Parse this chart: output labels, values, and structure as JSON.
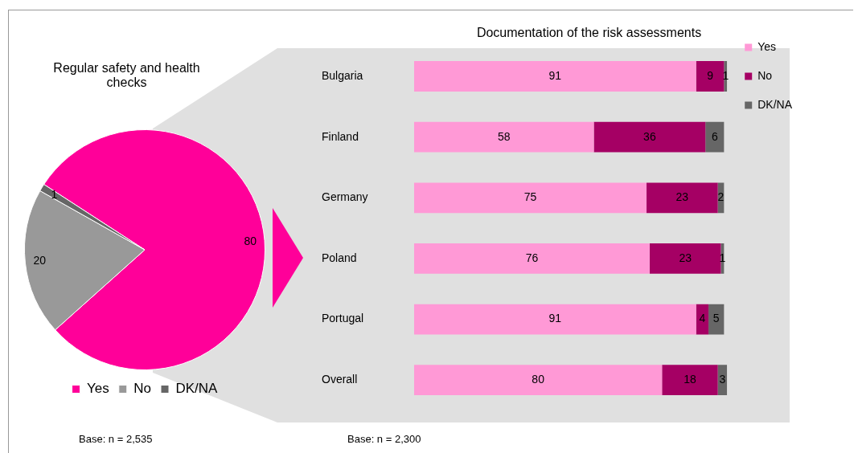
{
  "chart_data": [
    {
      "type": "pie",
      "title": "Regular safety and health checks",
      "categories": [
        "Yes",
        "No",
        "DK/NA"
      ],
      "values": [
        80,
        20,
        1
      ],
      "colors": [
        "#ff0099",
        "#999999",
        "#666666"
      ],
      "data_labels": true,
      "legend": "bottom",
      "annotations": [
        "Base: n = 2,535"
      ]
    },
    {
      "type": "bar",
      "orientation": "horizontal",
      "stacked": true,
      "title": "Documentation of the risk assessments",
      "categories": [
        "Bulgaria",
        "Finland",
        "Germany",
        "Poland",
        "Portugal",
        "Overall"
      ],
      "series": [
        {
          "name": "Yes",
          "color": "#ff99d6",
          "values": [
            91,
            58,
            75,
            76,
            91,
            80
          ]
        },
        {
          "name": "No",
          "color": "#a50064",
          "values": [
            9,
            36,
            23,
            23,
            4,
            18
          ]
        },
        {
          "name": "DK/NA",
          "color": "#666666",
          "values": [
            1,
            6,
            2,
            1,
            5,
            3
          ]
        }
      ],
      "data_labels": true,
      "legend": "top right",
      "grid": false,
      "annotations": [
        "Base: n = 2,300"
      ]
    }
  ]
}
